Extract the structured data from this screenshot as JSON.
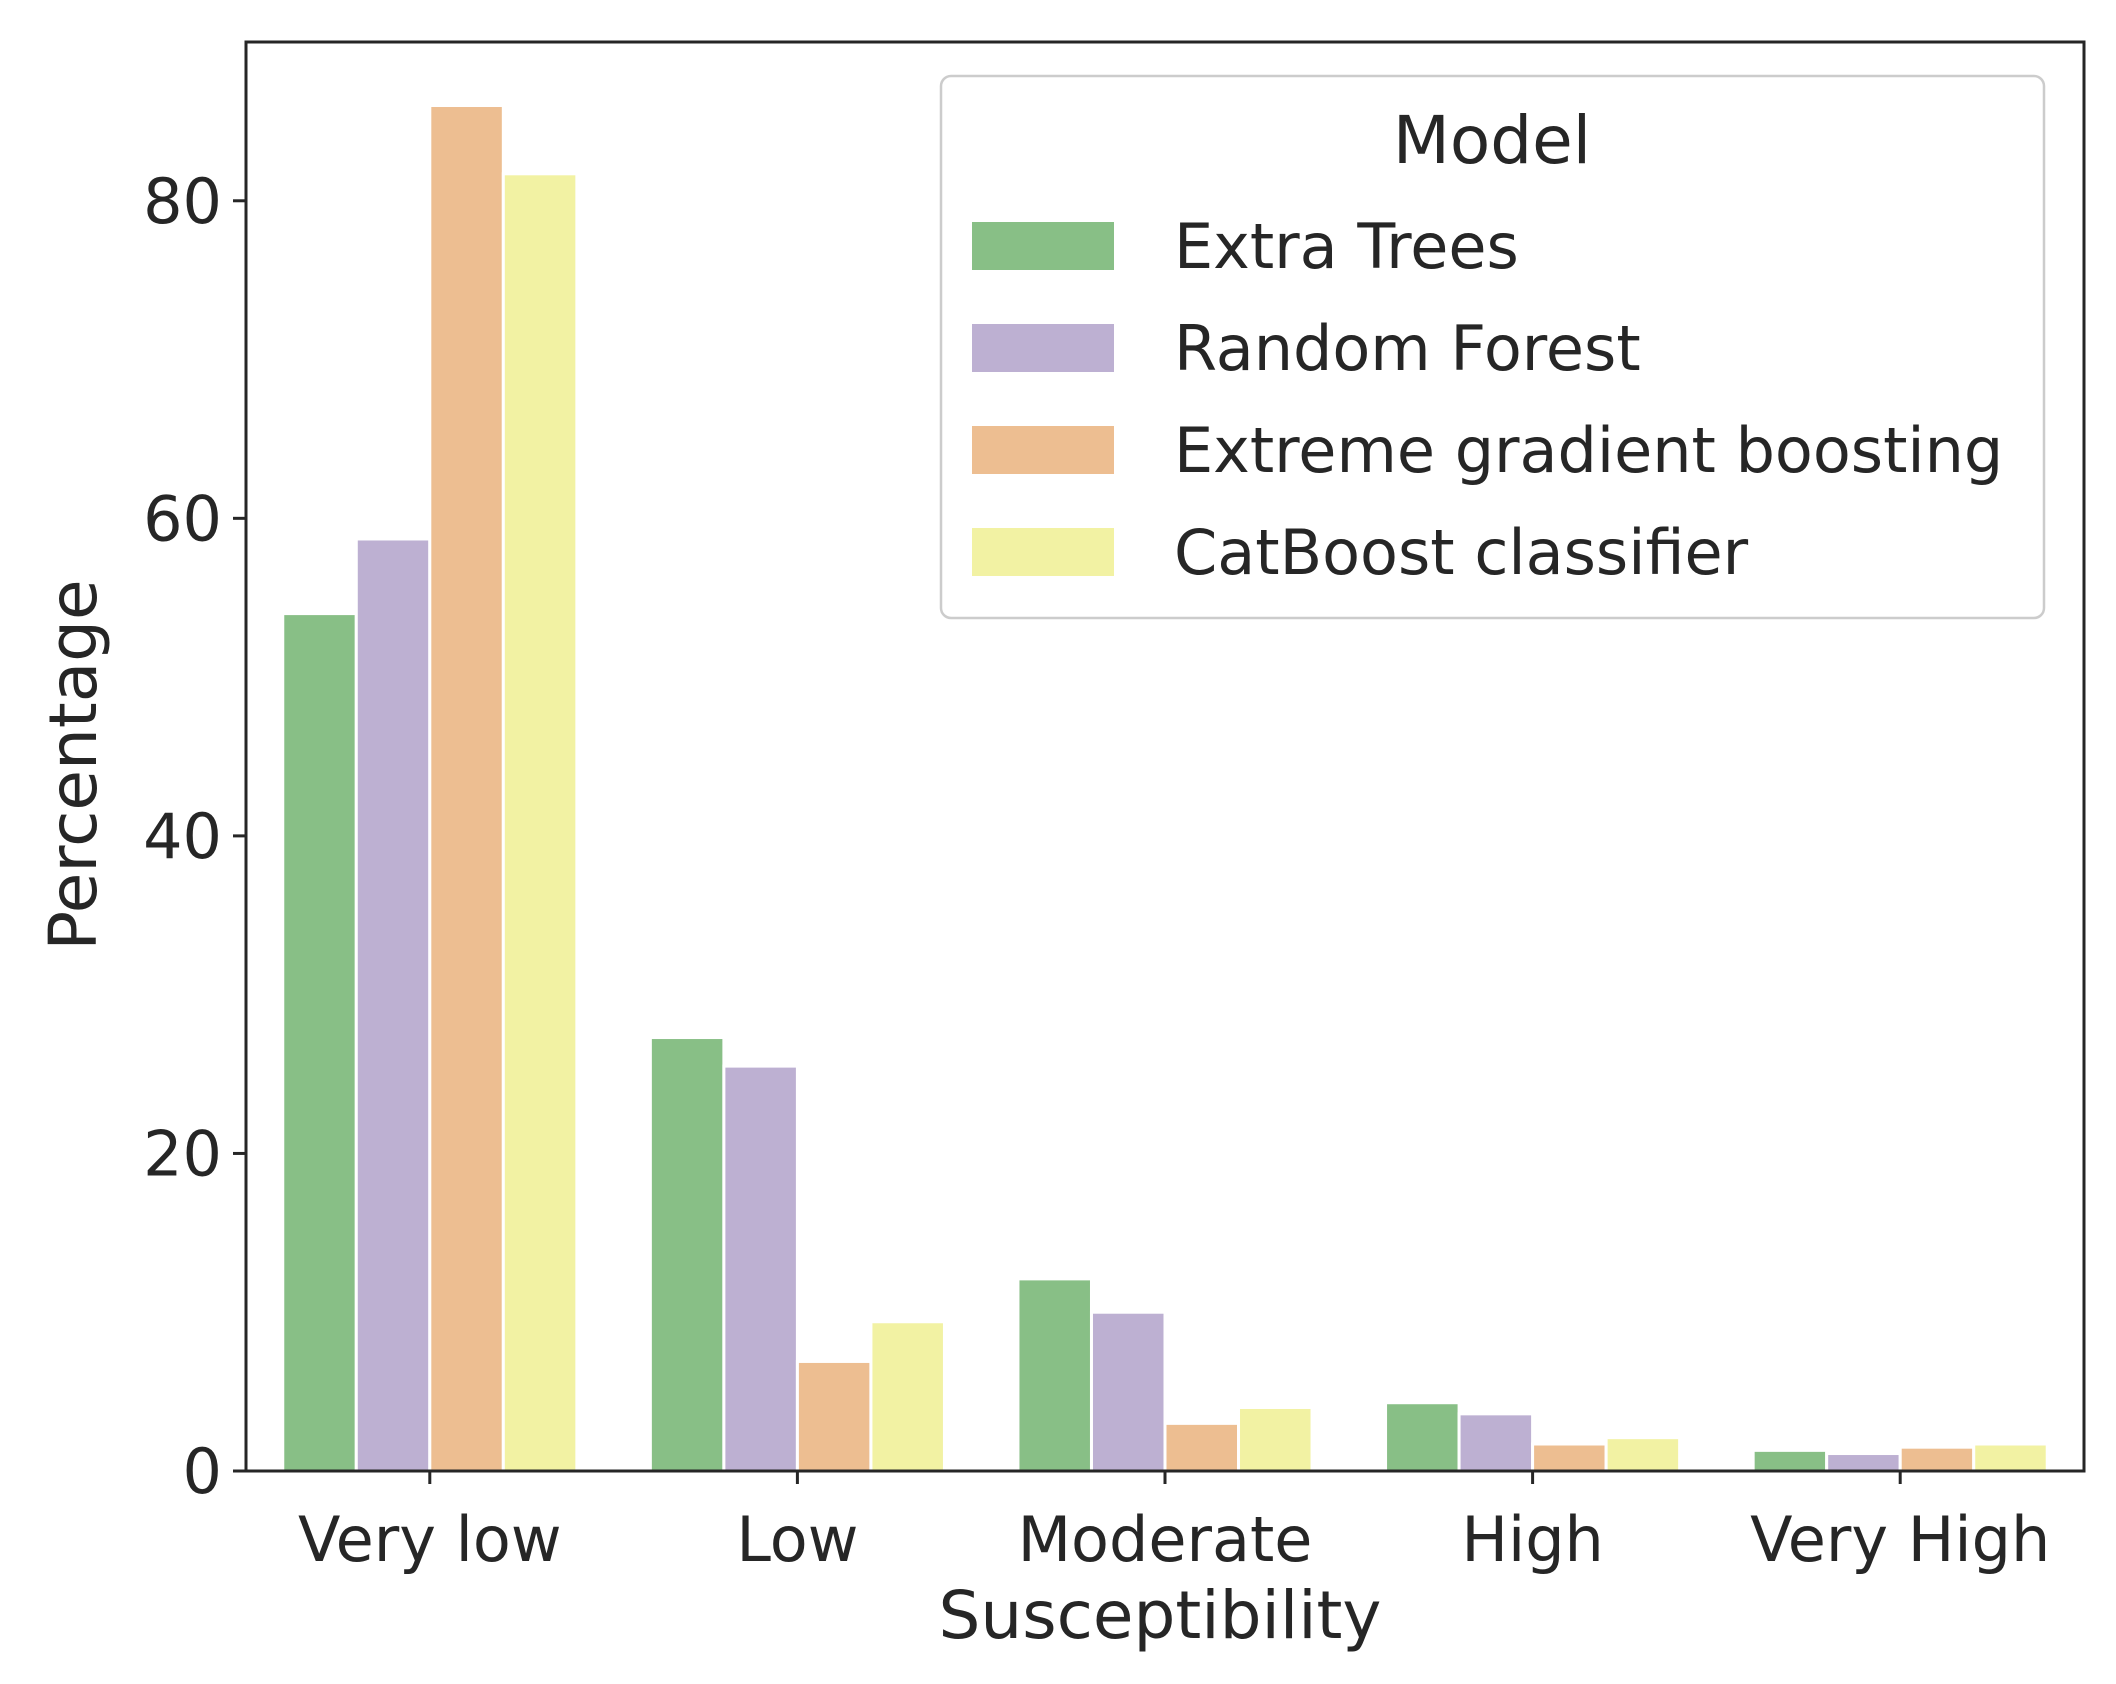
{
  "chart_data": {
    "type": "bar",
    "title": "",
    "xlabel": "Susceptibility",
    "ylabel": "Percentage",
    "ylim": [
      0,
      90
    ],
    "yticks": [
      0,
      20,
      40,
      60,
      80
    ],
    "ytick_labels": [
      "0",
      "20",
      "40",
      "60",
      "80"
    ],
    "grid": false,
    "legend_position": "top-right",
    "legend_title": "Model",
    "categories": [
      "Very low",
      "Low",
      "Moderate",
      "High",
      "Very High"
    ],
    "series": [
      {
        "name": "Extra Trees",
        "color": "#88bf86",
        "values": [
          54.0,
          27.3,
          12.1,
          4.3,
          1.3
        ]
      },
      {
        "name": "Random Forest",
        "color": "#bdb0d2",
        "values": [
          58.7,
          25.5,
          10.0,
          3.6,
          1.1
        ]
      },
      {
        "name": "Extreme gradient boosting",
        "color": "#edbe91",
        "values": [
          86.0,
          6.9,
          3.0,
          1.7,
          1.5
        ]
      },
      {
        "name": "CatBoost classifier",
        "color": "#f2f2a3",
        "values": [
          81.7,
          9.4,
          4.0,
          2.1,
          1.7
        ]
      }
    ]
  }
}
